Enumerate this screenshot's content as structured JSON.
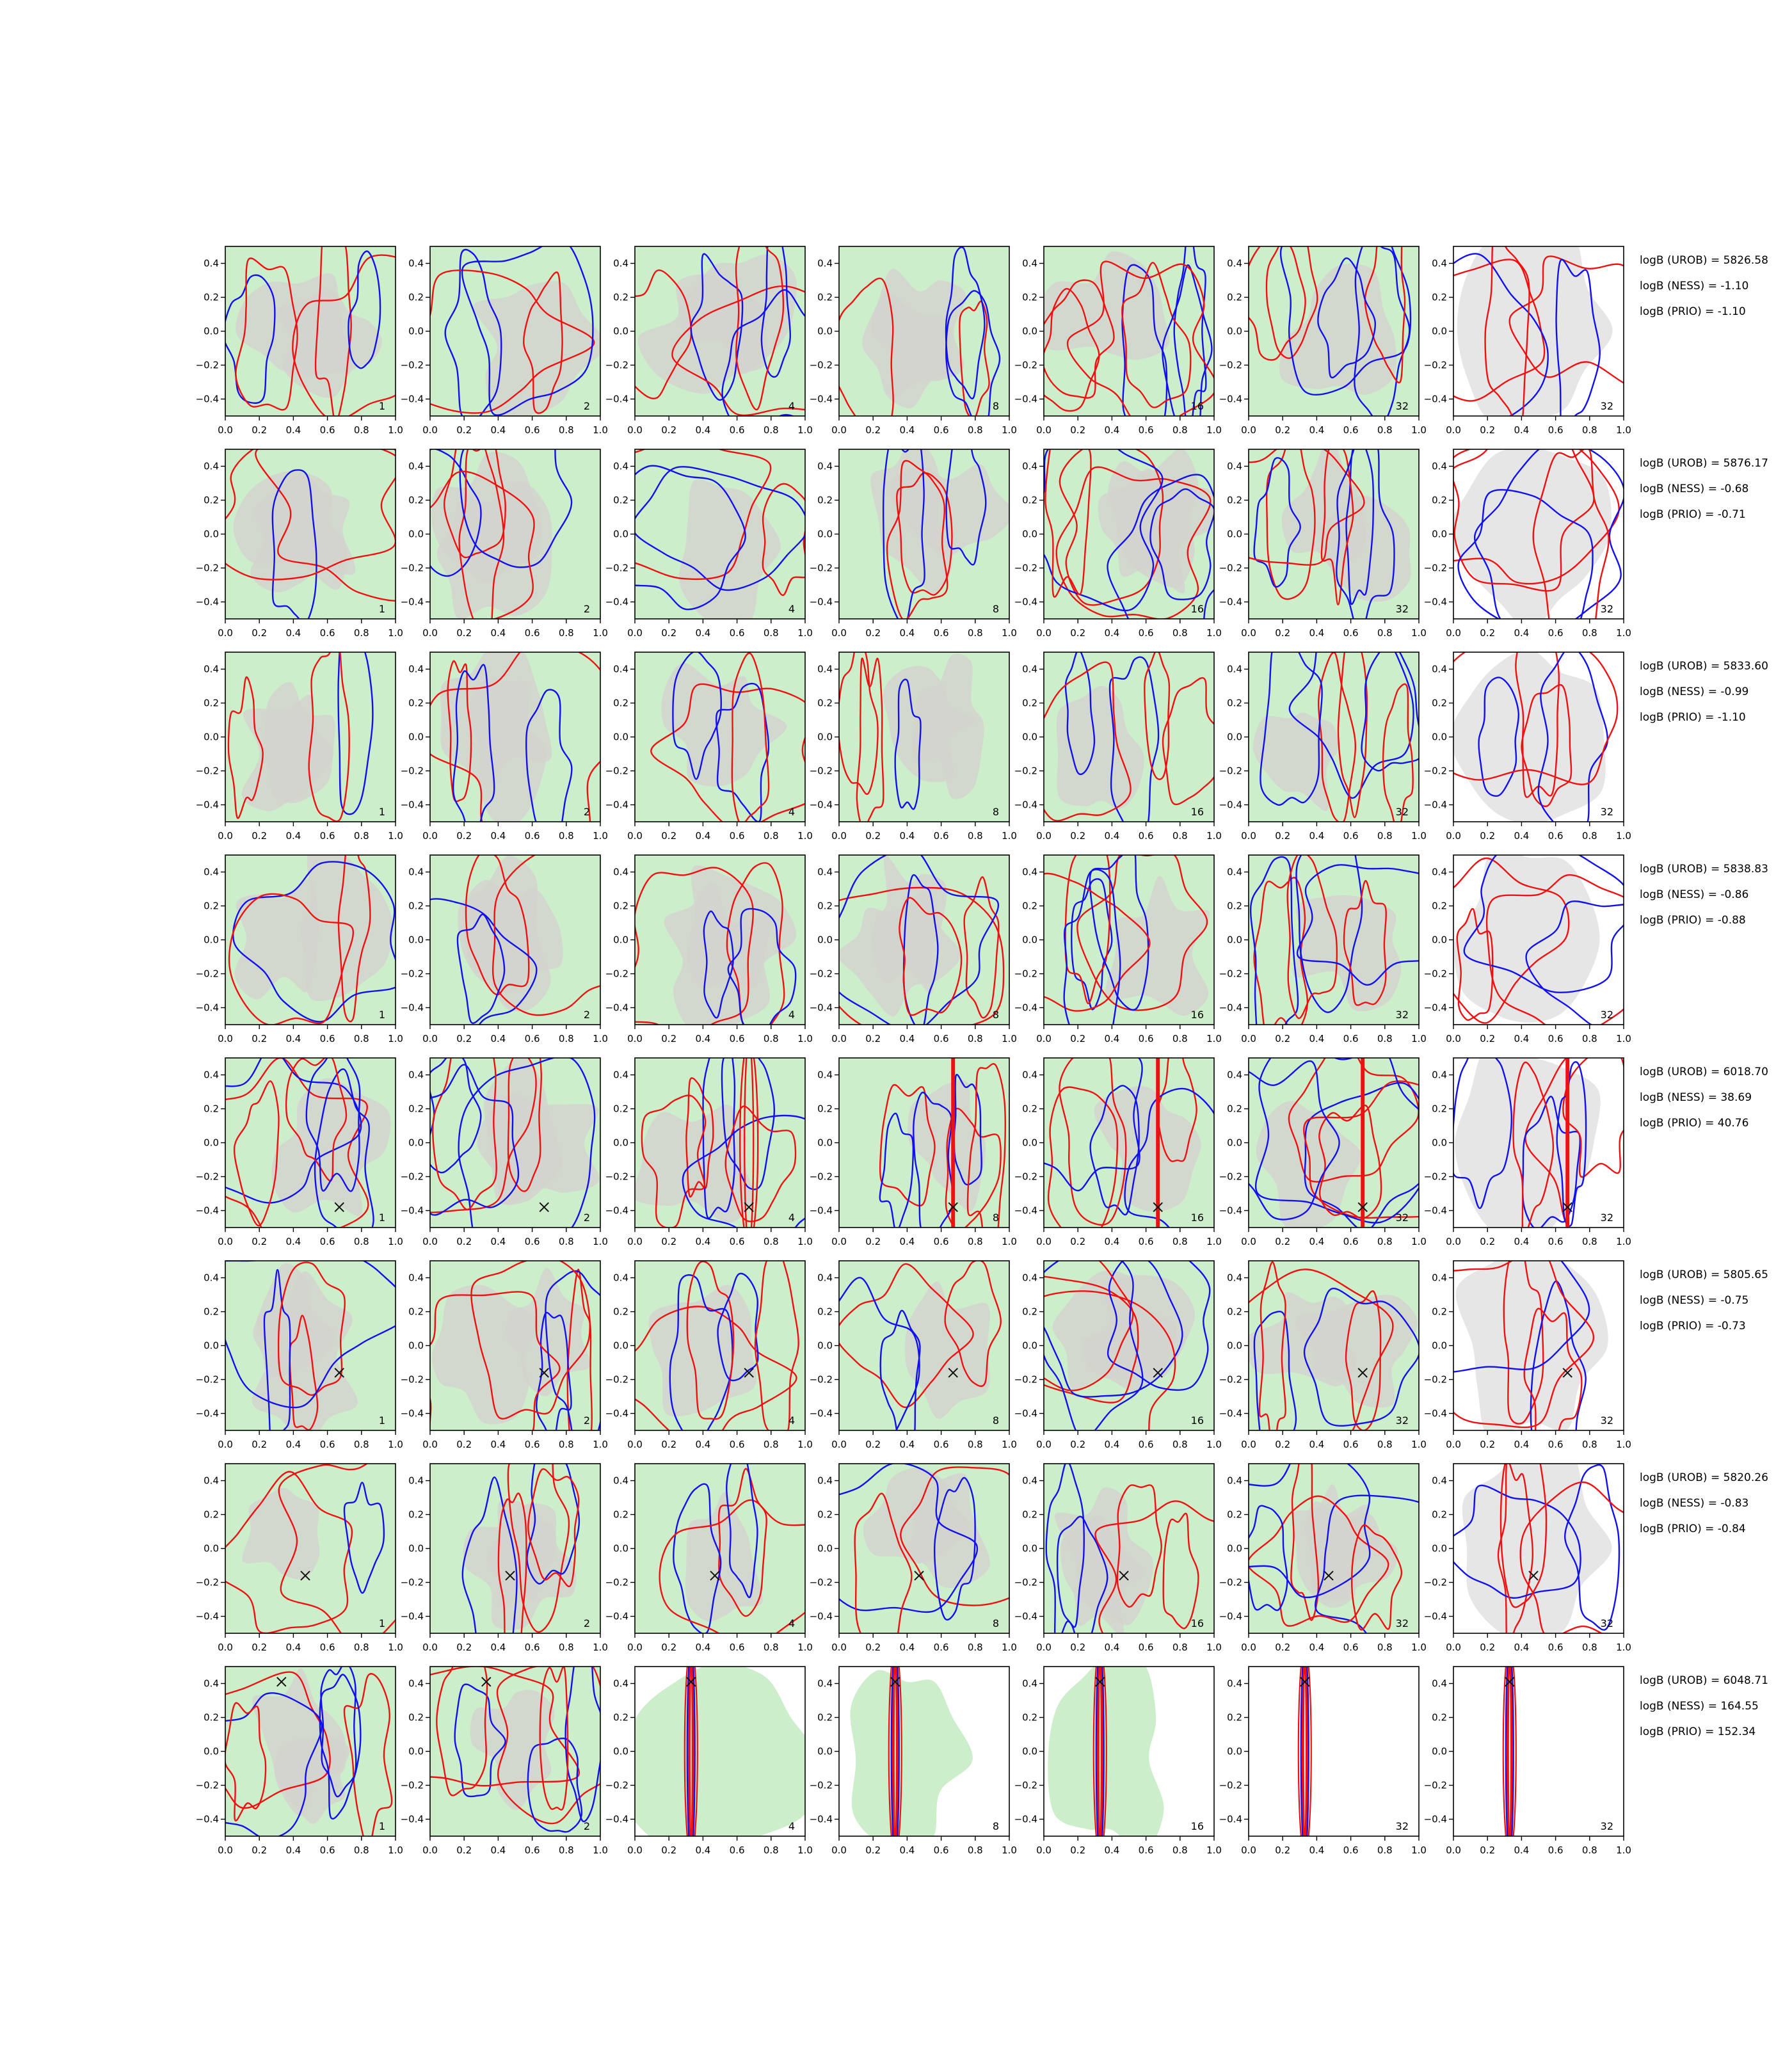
{
  "chart_data": {
    "type": "contour",
    "layout": "8 rows x 7 columns of small-multiple contour panels",
    "xlim": [
      0,
      1
    ],
    "ylim": [
      -0.5,
      0.5
    ],
    "xticks": [
      "0.0",
      "0.2",
      "0.4",
      "0.6",
      "0.8",
      "1.0"
    ],
    "yticks": [
      "0.4",
      "0.2",
      "0.0",
      "−0.2",
      "−0.4"
    ],
    "panel_labels": [
      "1",
      "2",
      "4",
      "8",
      "16",
      "32",
      "32"
    ],
    "fills": {
      "light": "#cdeecb",
      "dark": "#d3d3cf",
      "grey": "#e6e6e6"
    },
    "line_colors": {
      "red": "#ee1111",
      "blue": "#1111ee"
    },
    "rows": [
      {
        "marker": null,
        "uniform": [
          5,
          4,
          6,
          4,
          7,
          6,
          5
        ],
        "annotations": [
          "logB (UROB) = 5826.58",
          "logB (NESS) = -1.10",
          "logB (PRIO) = -1.10"
        ]
      },
      {
        "marker": null,
        "uniform": [
          3,
          5,
          4,
          4,
          6,
          6,
          5
        ],
        "annotations": [
          "logB (UROB) = 5876.17",
          "logB (NESS) = -0.68",
          "logB (PRIO) = -0.71"
        ]
      },
      {
        "marker": null,
        "uniform": [
          3,
          4,
          4,
          3,
          5,
          6,
          5
        ],
        "annotations": [
          "logB (UROB) = 5833.60",
          "logB (NESS) = -0.99",
          "logB (PRIO) = -1.10"
        ]
      },
      {
        "marker": null,
        "uniform": [
          3,
          4,
          4,
          5,
          6,
          6,
          5
        ],
        "annotations": [
          "logB (UROB) = 5838.83",
          "logB (NESS) = -0.86",
          "logB (PRIO) = -0.88"
        ]
      },
      {
        "marker": [
          0.67,
          -0.38
        ],
        "uniform": [
          6,
          6,
          6,
          6,
          6,
          6,
          6
        ],
        "annotations": [
          "logB (UROB) = 6018.70",
          "logB (NESS) = 38.69",
          "logB (PRIO) = 40.76"
        ]
      },
      {
        "marker": [
          0.67,
          -0.16
        ],
        "uniform": [
          4,
          5,
          5,
          4,
          6,
          5,
          5
        ],
        "annotations": [
          "logB (UROB) = 5805.65",
          "logB (NESS) = -0.75",
          "logB (PRIO) = -0.73"
        ]
      },
      {
        "marker": [
          0.47,
          -0.16
        ],
        "uniform": [
          3,
          5,
          4,
          4,
          5,
          6,
          5
        ],
        "annotations": [
          "logB (UROB) = 5820.26",
          "logB (NESS) = -0.83",
          "logB (PRIO) = -0.84"
        ]
      },
      {
        "marker": [
          0.33,
          0.41
        ],
        "uniform": [
          6,
          7,
          6,
          6,
          6,
          6,
          6
        ],
        "annotations": [
          "logB (UROB) = 6048.71",
          "logB (NESS) = 164.55",
          "logB (PRIO) = 152.34"
        ]
      }
    ]
  }
}
